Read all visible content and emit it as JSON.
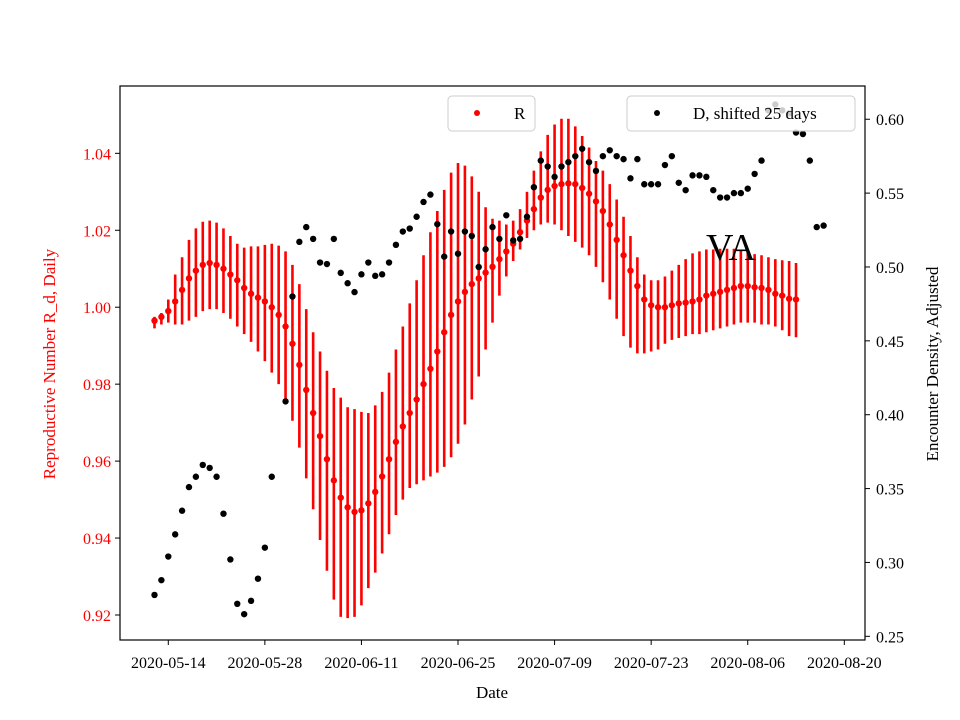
{
  "chart_data": {
    "type": "scatter",
    "xlabel": "Date",
    "ylabel_left": "Reproductive Number R_d, Daily",
    "ylabel_right": "Encounter Density, Adjusted",
    "annotation": "VA",
    "x_ticks": [
      "2020-05-14",
      "2020-05-28",
      "2020-06-11",
      "2020-06-25",
      "2020-07-09",
      "2020-07-23",
      "2020-08-06",
      "2020-08-20"
    ],
    "left_ticks": [
      "0.92",
      "0.94",
      "0.96",
      "0.98",
      "1.00",
      "1.02",
      "1.04"
    ],
    "right_ticks": [
      "0.25",
      "0.30",
      "0.35",
      "0.40",
      "0.45",
      "0.50",
      "0.55",
      "0.60"
    ],
    "xlim": [
      "2020-05-07",
      "2020-08-23"
    ],
    "ylim_left": [
      0.9135,
      1.0575
    ],
    "ylim_right": [
      0.2475,
      0.6225
    ],
    "left_axis_color": "#ff0000",
    "right_axis_color": "#000000",
    "legend_r": {
      "label": "R",
      "placement": "top-center"
    },
    "legend_d": {
      "label": "D, shifted 25 days",
      "placement": "top-right"
    },
    "r_color": "#ff0000",
    "d_color": "#000000",
    "series_r": {
      "name": "R",
      "axis": "left",
      "start_date": "2020-05-12",
      "dates_note": "daily consecutive values from start_date",
      "values": [
        0.9965,
        0.9975,
        0.999,
        1.0015,
        1.0045,
        1.0075,
        1.0095,
        1.011,
        1.0115,
        1.011,
        1.01,
        1.0085,
        1.007,
        1.005,
        1.0035,
        1.0025,
        1.0015,
        1.0,
        0.998,
        0.995,
        0.9905,
        0.985,
        0.9785,
        0.9725,
        0.9665,
        0.9605,
        0.955,
        0.9505,
        0.948,
        0.9468,
        0.9472,
        0.949,
        0.952,
        0.956,
        0.9605,
        0.965,
        0.969,
        0.9725,
        0.976,
        0.98,
        0.984,
        0.9885,
        0.9935,
        0.998,
        1.0015,
        1.004,
        1.006,
        1.0075,
        1.009,
        1.0105,
        1.0125,
        1.0145,
        1.0165,
        1.0195,
        1.0225,
        1.0255,
        1.0285,
        1.0305,
        1.0315,
        1.032,
        1.0322,
        1.032,
        1.031,
        1.0295,
        1.0275,
        1.025,
        1.0215,
        1.0175,
        1.0135,
        1.0095,
        1.0055,
        1.002,
        1.0005,
        1.0,
        1.0,
        1.0005,
        1.001,
        1.0012,
        1.0015,
        1.002,
        1.003,
        1.0035,
        1.004,
        1.0045,
        1.005,
        1.0055,
        1.0055,
        1.0052,
        1.005,
        1.0045,
        1.0035,
        1.003,
        1.0022,
        1.002
      ],
      "err_low": [
        0.9945,
        0.9955,
        0.996,
        0.9955,
        0.9955,
        0.9965,
        0.9975,
        0.999,
        0.9995,
        0.9995,
        0.9985,
        0.997,
        0.995,
        0.993,
        0.991,
        0.9885,
        0.986,
        0.983,
        0.98,
        0.976,
        0.9705,
        0.9635,
        0.9555,
        0.9475,
        0.9395,
        0.9315,
        0.924,
        0.9195,
        0.9192,
        0.9195,
        0.9225,
        0.927,
        0.931,
        0.936,
        0.941,
        0.946,
        0.95,
        0.953,
        0.954,
        0.955,
        0.956,
        0.957,
        0.9585,
        0.961,
        0.9645,
        0.9695,
        0.976,
        0.982,
        0.989,
        0.996,
        1.003,
        1.008,
        1.012,
        1.015,
        1.018,
        1.02,
        1.0215,
        1.022,
        1.0215,
        1.02,
        1.0185,
        1.017,
        1.0155,
        1.0135,
        1.0105,
        1.0065,
        1.002,
        0.997,
        0.9925,
        0.9895,
        0.988,
        0.988,
        0.9885,
        0.989,
        0.9905,
        0.9915,
        0.992,
        0.9925,
        0.993,
        0.993,
        0.9935,
        0.994,
        0.9945,
        0.995,
        0.9955,
        0.996,
        0.996,
        0.996,
        0.9955,
        0.9955,
        0.995,
        0.994,
        0.9925,
        0.9922
      ],
      "err_high": [
        0.9975,
        0.9985,
        1.002,
        1.0085,
        1.013,
        1.0175,
        1.0205,
        1.0222,
        1.0225,
        1.022,
        1.0205,
        1.0185,
        1.0165,
        1.0155,
        1.0158,
        1.0158,
        1.0162,
        1.0165,
        1.016,
        1.0145,
        1.011,
        1.006,
        0.9995,
        0.9935,
        0.9885,
        0.9835,
        0.979,
        0.9765,
        0.974,
        0.9735,
        0.9728,
        0.9725,
        0.9745,
        0.978,
        0.983,
        0.989,
        0.995,
        1.001,
        1.007,
        1.0135,
        1.0195,
        1.025,
        1.0305,
        1.035,
        1.0375,
        1.0368,
        1.034,
        1.03,
        1.026,
        1.023,
        1.0225,
        1.0215,
        1.0225,
        1.0255,
        1.03,
        1.0355,
        1.0405,
        1.0448,
        1.0475,
        1.049,
        1.049,
        1.047,
        1.0445,
        1.0415,
        1.038,
        1.0355,
        1.032,
        1.028,
        1.0235,
        1.0185,
        1.013,
        1.0085,
        1.007,
        1.007,
        1.008,
        1.0095,
        1.011,
        1.0125,
        1.014,
        1.0145,
        1.015,
        1.015,
        1.0152,
        1.0152,
        1.0152,
        1.015,
        1.0145,
        1.0138,
        1.0135,
        1.013,
        1.0125,
        1.0122,
        1.012,
        1.0115
      ]
    },
    "series_d": {
      "name": "D, shifted 25 days",
      "axis": "right",
      "points": [
        [
          "2020-05-12",
          0.278
        ],
        [
          "2020-05-13",
          0.288
        ],
        [
          "2020-05-14",
          0.304
        ],
        [
          "2020-05-15",
          0.319
        ],
        [
          "2020-05-16",
          0.335
        ],
        [
          "2020-05-17",
          0.351
        ],
        [
          "2020-05-18",
          0.358
        ],
        [
          "2020-05-19",
          0.366
        ],
        [
          "2020-05-20",
          0.364
        ],
        [
          "2020-05-21",
          0.358
        ],
        [
          "2020-05-22",
          0.333
        ],
        [
          "2020-05-23",
          0.302
        ],
        [
          "2020-05-24",
          0.272
        ],
        [
          "2020-05-25",
          0.265
        ],
        [
          "2020-05-26",
          0.274
        ],
        [
          "2020-05-27",
          0.289
        ],
        [
          "2020-05-28",
          0.31
        ],
        [
          "2020-05-29",
          0.358
        ],
        [
          "2020-05-31",
          0.409
        ],
        [
          "2020-06-01",
          0.48
        ],
        [
          "2020-06-02",
          0.517
        ],
        [
          "2020-06-03",
          0.527
        ],
        [
          "2020-06-04",
          0.519
        ],
        [
          "2020-06-05",
          0.503
        ],
        [
          "2020-06-06",
          0.502
        ],
        [
          "2020-06-07",
          0.519
        ],
        [
          "2020-06-08",
          0.496
        ],
        [
          "2020-06-09",
          0.489
        ],
        [
          "2020-06-10",
          0.483
        ],
        [
          "2020-06-11",
          0.495
        ],
        [
          "2020-06-12",
          0.503
        ],
        [
          "2020-06-13",
          0.494
        ],
        [
          "2020-06-14",
          0.495
        ],
        [
          "2020-06-15",
          0.503
        ],
        [
          "2020-06-16",
          0.515
        ],
        [
          "2020-06-17",
          0.524
        ],
        [
          "2020-06-18",
          0.526
        ],
        [
          "2020-06-19",
          0.534
        ],
        [
          "2020-06-20",
          0.544
        ],
        [
          "2020-06-21",
          0.549
        ],
        [
          "2020-06-22",
          0.529
        ],
        [
          "2020-06-23",
          0.507
        ],
        [
          "2020-06-24",
          0.524
        ],
        [
          "2020-06-25",
          0.509
        ],
        [
          "2020-06-26",
          0.524
        ],
        [
          "2020-06-27",
          0.521
        ],
        [
          "2020-06-28",
          0.5
        ],
        [
          "2020-06-29",
          0.512
        ],
        [
          "2020-06-30",
          0.527
        ],
        [
          "2020-07-01",
          0.519
        ],
        [
          "2020-07-02",
          0.535
        ],
        [
          "2020-07-03",
          0.518
        ],
        [
          "2020-07-04",
          0.519
        ],
        [
          "2020-07-05",
          0.534
        ],
        [
          "2020-07-06",
          0.554
        ],
        [
          "2020-07-07",
          0.572
        ],
        [
          "2020-07-08",
          0.568
        ],
        [
          "2020-07-09",
          0.561
        ],
        [
          "2020-07-10",
          0.568
        ],
        [
          "2020-07-11",
          0.571
        ],
        [
          "2020-07-12",
          0.575
        ],
        [
          "2020-07-13",
          0.58
        ],
        [
          "2020-07-14",
          0.571
        ],
        [
          "2020-07-15",
          0.565
        ],
        [
          "2020-07-16",
          0.575
        ],
        [
          "2020-07-17",
          0.579
        ],
        [
          "2020-07-18",
          0.575
        ],
        [
          "2020-07-19",
          0.573
        ],
        [
          "2020-07-20",
          0.56
        ],
        [
          "2020-07-21",
          0.573
        ],
        [
          "2020-07-22",
          0.556
        ],
        [
          "2020-07-23",
          0.556
        ],
        [
          "2020-07-24",
          0.556
        ],
        [
          "2020-07-25",
          0.569
        ],
        [
          "2020-07-26",
          0.575
        ],
        [
          "2020-07-27",
          0.557
        ],
        [
          "2020-07-28",
          0.552
        ],
        [
          "2020-07-29",
          0.562
        ],
        [
          "2020-07-30",
          0.562
        ],
        [
          "2020-07-31",
          0.561
        ],
        [
          "2020-08-01",
          0.552
        ],
        [
          "2020-08-02",
          0.547
        ],
        [
          "2020-08-03",
          0.547
        ],
        [
          "2020-08-04",
          0.55
        ],
        [
          "2020-08-05",
          0.55
        ],
        [
          "2020-08-06",
          0.553
        ],
        [
          "2020-08-07",
          0.563
        ],
        [
          "2020-08-08",
          0.572
        ],
        [
          "2020-08-09",
          0.606
        ],
        [
          "2020-08-10",
          0.61
        ],
        [
          "2020-08-11",
          0.606
        ],
        [
          "2020-08-12",
          0.604
        ],
        [
          "2020-08-13",
          0.591
        ],
        [
          "2020-08-14",
          0.59
        ],
        [
          "2020-08-15",
          0.572
        ],
        [
          "2020-08-16",
          0.527
        ],
        [
          "2020-08-17",
          0.528
        ]
      ]
    }
  }
}
